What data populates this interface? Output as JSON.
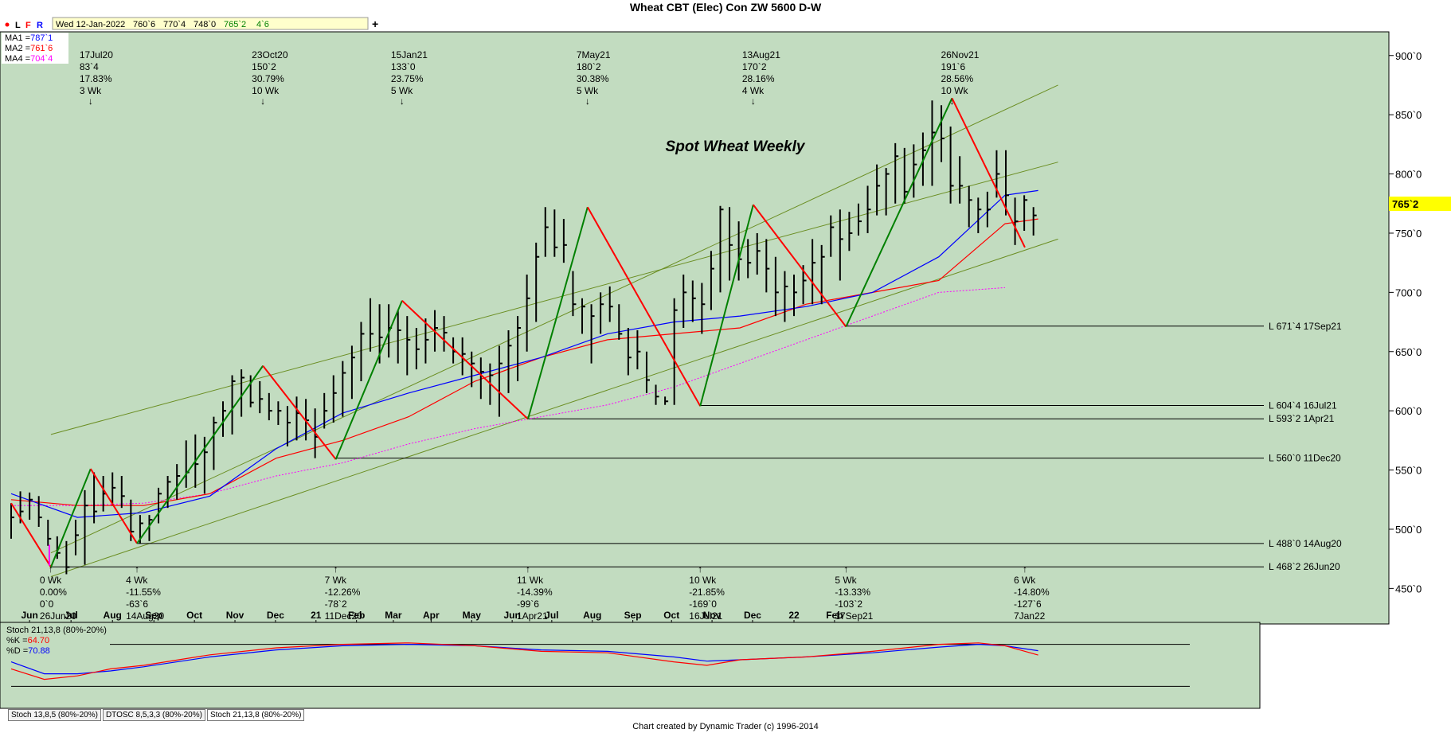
{
  "title": "Wheat CBT (Elec) Con ZW 5600 D-W",
  "footer": "Chart created by Dynamic Trader  (c)  1996-2014",
  "toolbar": {
    "buttons": [
      "L",
      "F",
      "R"
    ],
    "date": "Wed 12-Jan-2022",
    "ohlc": [
      "760`6",
      "770`4",
      "748`0"
    ],
    "last": "765`2",
    "change": "4`6",
    "add": "+"
  },
  "ma_legend": [
    {
      "label": "MA1 =",
      "value": "787`1",
      "color": "#0000ff"
    },
    {
      "label": "MA2 =",
      "value": "761`6",
      "color": "#ff0000"
    },
    {
      "label": "MA4 =",
      "value": "704`4",
      "color": "#ff00ff"
    }
  ],
  "annotation_title": "Spot Wheat Weekly",
  "price_tag": "765`2",
  "tabs": [
    "Stoch 13,8,5 (80%-20%)",
    "DTOSC 8,5,3,3 (80%-20%)",
    "Stoch 21,13,8 (80%-20%)"
  ],
  "stoch": {
    "label": "Stoch 21,13,8 (80%-20%)",
    "k_label": "%K =",
    "k_value": "64.70",
    "d_label": "%D =",
    "d_value": "70.88"
  },
  "colors": {
    "background": "#c2dcc0",
    "up_leg": "#008000",
    "down_leg": "#ff0000",
    "ma1": "#0000ff",
    "ma2": "#ff0000",
    "ma4": "#ff00ff",
    "channel": "#6b8e23",
    "price_tag": "#ffff00"
  },
  "chart_data": {
    "type": "ohlc-bar",
    "y_axis": {
      "min": 420,
      "max": 920,
      "ticks": [
        450,
        500,
        550,
        600,
        650,
        700,
        750,
        800,
        850,
        900
      ],
      "tick_labels": [
        "450`0",
        "500`0",
        "550`0",
        "600`0",
        "650`0",
        "700`0",
        "750`0",
        "800`0",
        "850`0",
        "900`0"
      ]
    },
    "x_axis": {
      "labels": [
        {
          "t": 2.0,
          "label": "Jun"
        },
        {
          "t": 6.5,
          "label": "Jul"
        },
        {
          "t": 11.0,
          "label": "Aug"
        },
        {
          "t": 15.5,
          "label": "Sep"
        },
        {
          "t": 19.9,
          "label": "Oct"
        },
        {
          "t": 24.3,
          "label": "Nov"
        },
        {
          "t": 28.7,
          "label": "Dec"
        },
        {
          "t": 33.1,
          "label": "21"
        },
        {
          "t": 37.5,
          "label": "Feb"
        },
        {
          "t": 41.5,
          "label": "Mar"
        },
        {
          "t": 45.6,
          "label": "Apr"
        },
        {
          "t": 50.0,
          "label": "May"
        },
        {
          "t": 54.4,
          "label": "Jun"
        },
        {
          "t": 58.7,
          "label": "Jul"
        },
        {
          "t": 63.1,
          "label": "Aug"
        },
        {
          "t": 67.5,
          "label": "Sep"
        },
        {
          "t": 71.7,
          "label": "Oct"
        },
        {
          "t": 76.1,
          "label": "Nov"
        },
        {
          "t": 80.5,
          "label": "Dec"
        },
        {
          "t": 85.0,
          "label": "22"
        },
        {
          "t": 89.4,
          "label": "Feb"
        }
      ]
    },
    "bars": [
      [
        0,
        522,
        492,
        510
      ],
      [
        1,
        532,
        505,
        515
      ],
      [
        2,
        531,
        508,
        525
      ],
      [
        3,
        528,
        502,
        510
      ],
      [
        4,
        508,
        486,
        492
      ],
      [
        5,
        494,
        475,
        480
      ],
      [
        6,
        490,
        462,
        468
      ],
      [
        7,
        508,
        478,
        495
      ],
      [
        8,
        533,
        470,
        520
      ],
      [
        9,
        548,
        505,
        515
      ],
      [
        10,
        545,
        515,
        530
      ],
      [
        11,
        548,
        520,
        535
      ],
      [
        12,
        545,
        518,
        528
      ],
      [
        13,
        525,
        490,
        498
      ],
      [
        14,
        512,
        488,
        505
      ],
      [
        15,
        512,
        490,
        508
      ],
      [
        16,
        535,
        505,
        530
      ],
      [
        17,
        545,
        518,
        540
      ],
      [
        18,
        555,
        525,
        545
      ],
      [
        19,
        575,
        535,
        548
      ],
      [
        20,
        580,
        535,
        555
      ],
      [
        21,
        578,
        530,
        565
      ],
      [
        22,
        595,
        550,
        590
      ],
      [
        23,
        608,
        578,
        600
      ],
      [
        24,
        630,
        580,
        625
      ],
      [
        25,
        635,
        595,
        628
      ],
      [
        26,
        630,
        603,
        607
      ],
      [
        27,
        625,
        598,
        610
      ],
      [
        28,
        615,
        592,
        600
      ],
      [
        29,
        608,
        588,
        600
      ],
      [
        30,
        604,
        570,
        590
      ],
      [
        31,
        612,
        575,
        598
      ],
      [
        32,
        610,
        575,
        592
      ],
      [
        33,
        602,
        560,
        578
      ],
      [
        34,
        615,
        585,
        600
      ],
      [
        35,
        630,
        590,
        615
      ],
      [
        36,
        642,
        595,
        632
      ],
      [
        37,
        655,
        610,
        645
      ],
      [
        38,
        675,
        625,
        665
      ],
      [
        39,
        695,
        650,
        665
      ],
      [
        40,
        690,
        640,
        662
      ],
      [
        41,
        690,
        645,
        670
      ],
      [
        42,
        685,
        640,
        668
      ],
      [
        43,
        680,
        630,
        660
      ],
      [
        44,
        670,
        635,
        652
      ],
      [
        45,
        678,
        640,
        660
      ],
      [
        46,
        685,
        650,
        670
      ],
      [
        47,
        680,
        650,
        666
      ],
      [
        48,
        662,
        640,
        650
      ],
      [
        49,
        662,
        630,
        648
      ],
      [
        50,
        650,
        620,
        640
      ],
      [
        51,
        645,
        610,
        633
      ],
      [
        52,
        640,
        605,
        630
      ],
      [
        53,
        655,
        595,
        640
      ],
      [
        54,
        668,
        615,
        655
      ],
      [
        55,
        680,
        625,
        670
      ],
      [
        56,
        715,
        650,
        695
      ],
      [
        57,
        742,
        675,
        730
      ],
      [
        58,
        772,
        730,
        755
      ],
      [
        59,
        770,
        730,
        738
      ],
      [
        60,
        762,
        725,
        740
      ],
      [
        61,
        718,
        680,
        690
      ],
      [
        62,
        695,
        665,
        688
      ],
      [
        63,
        690,
        640,
        680
      ],
      [
        64,
        700,
        665,
        690
      ],
      [
        65,
        705,
        675,
        688
      ],
      [
        66,
        690,
        660,
        665
      ],
      [
        67,
        670,
        630,
        645
      ],
      [
        68,
        668,
        635,
        650
      ],
      [
        69,
        650,
        615,
        626
      ],
      [
        70,
        622,
        605,
        612
      ],
      [
        71,
        612,
        605,
        608
      ],
      [
        72,
        695,
        605,
        685
      ],
      [
        73,
        715,
        670,
        700
      ],
      [
        74,
        710,
        675,
        695
      ],
      [
        75,
        708,
        665,
        690
      ],
      [
        76,
        735,
        685,
        720
      ],
      [
        77,
        773,
        700,
        770
      ],
      [
        78,
        772,
        710,
        740
      ],
      [
        79,
        760,
        710,
        728
      ],
      [
        80,
        745,
        712,
        725
      ],
      [
        81,
        750,
        715,
        735
      ],
      [
        82,
        745,
        700,
        720
      ],
      [
        83,
        730,
        680,
        700
      ],
      [
        84,
        718,
        675,
        705
      ],
      [
        85,
        715,
        680,
        700
      ],
      [
        86,
        723,
        690,
        710
      ],
      [
        87,
        745,
        690,
        725
      ],
      [
        88,
        740,
        690,
        730
      ],
      [
        89,
        765,
        730,
        755
      ],
      [
        90,
        770,
        710,
        745
      ],
      [
        91,
        768,
        735,
        750
      ],
      [
        92,
        775,
        748,
        760
      ],
      [
        93,
        790,
        750,
        770
      ],
      [
        94,
        808,
        765,
        790
      ],
      [
        95,
        805,
        765,
        800
      ],
      [
        96,
        826,
        775,
        815
      ],
      [
        97,
        822,
        775,
        785
      ],
      [
        98,
        825,
        780,
        808
      ],
      [
        99,
        835,
        790,
        820
      ],
      [
        100,
        862,
        790,
        835
      ],
      [
        101,
        858,
        810,
        830
      ],
      [
        102,
        840,
        775,
        790
      ],
      [
        103,
        815,
        775,
        790
      ],
      [
        104,
        790,
        755,
        778
      ],
      [
        105,
        780,
        750,
        770
      ],
      [
        106,
        785,
        755,
        770
      ],
      [
        107,
        820,
        780,
        800
      ],
      [
        108,
        820,
        765,
        782
      ],
      [
        109,
        780,
        740,
        760
      ],
      [
        110,
        782,
        752,
        778
      ],
      [
        111,
        772,
        748,
        765
      ]
    ],
    "swings": [
      [
        0,
        522
      ],
      [
        6,
        468
      ],
      [
        12,
        551
      ],
      [
        19,
        488
      ],
      [
        38,
        638
      ],
      [
        49,
        559
      ],
      [
        59,
        693
      ],
      [
        78,
        593
      ],
      [
        87,
        772
      ],
      [
        104,
        604
      ],
      [
        112,
        774
      ],
      [
        126,
        671
      ],
      [
        142,
        864
      ],
      [
        153,
        738
      ]
    ],
    "ma1": [
      [
        0,
        530
      ],
      [
        10,
        510
      ],
      [
        20,
        514
      ],
      [
        30,
        528
      ],
      [
        40,
        568
      ],
      [
        50,
        598
      ],
      [
        60,
        615
      ],
      [
        70,
        630
      ],
      [
        80,
        645
      ],
      [
        90,
        665
      ],
      [
        100,
        675
      ],
      [
        110,
        680
      ],
      [
        120,
        688
      ],
      [
        130,
        700
      ],
      [
        140,
        730
      ],
      [
        150,
        782
      ],
      [
        155,
        786
      ]
    ],
    "ma2": [
      [
        0,
        525
      ],
      [
        10,
        520
      ],
      [
        20,
        520
      ],
      [
        30,
        530
      ],
      [
        40,
        560
      ],
      [
        50,
        575
      ],
      [
        60,
        595
      ],
      [
        70,
        625
      ],
      [
        80,
        645
      ],
      [
        90,
        660
      ],
      [
        100,
        665
      ],
      [
        110,
        670
      ],
      [
        120,
        690
      ],
      [
        130,
        700
      ],
      [
        140,
        710
      ],
      [
        150,
        758
      ],
      [
        155,
        762
      ]
    ],
    "ma4": [
      [
        0,
        520
      ],
      [
        10,
        520
      ],
      [
        20,
        522
      ],
      [
        30,
        530
      ],
      [
        40,
        545
      ],
      [
        50,
        556
      ],
      [
        60,
        572
      ],
      [
        70,
        585
      ],
      [
        80,
        595
      ],
      [
        90,
        605
      ],
      [
        100,
        620
      ],
      [
        110,
        640
      ],
      [
        120,
        660
      ],
      [
        130,
        680
      ],
      [
        140,
        700
      ],
      [
        150,
        704
      ]
    ],
    "channel": [
      {
        "x1": 6,
        "y1": 460,
        "x2": 158,
        "y2": 745
      },
      {
        "x1": 6,
        "y1": 580,
        "x2": 158,
        "y2": 810
      },
      {
        "x1": 6,
        "y1": 480,
        "x2": 158,
        "y2": 875
      }
    ],
    "support_levels": [
      {
        "price": 671.5,
        "from": 126,
        "label": "L 671`4 17Sep21"
      },
      {
        "price": 604.5,
        "from": 104,
        "label": "L 604`4 16Jul21"
      },
      {
        "price": 593.25,
        "from": 78,
        "label": "L 593`2 1Apr21"
      },
      {
        "price": 560.0,
        "from": 49,
        "label": "L 560`0 11Dec20"
      },
      {
        "price": 488.0,
        "from": 19,
        "label": "L 488`0 14Aug20"
      },
      {
        "price": 468.25,
        "from": 6,
        "label": "L 468`2 26Jun20"
      }
    ],
    "high_labels": [
      {
        "t": 12,
        "lines": [
          "17Jul20",
          "83`4",
          "17.83%",
          "3 Wk"
        ]
      },
      {
        "t": 38,
        "lines": [
          "23Oct20",
          "150`2",
          "30.79%",
          "10 Wk"
        ]
      },
      {
        "t": 59,
        "lines": [
          "15Jan21",
          "133`0",
          "23.75%",
          "5 Wk"
        ]
      },
      {
        "t": 87,
        "lines": [
          "7May21",
          "180`2",
          "30.38%",
          "5 Wk"
        ]
      },
      {
        "t": 112,
        "lines": [
          "13Aug21",
          "170`2",
          "28.16%",
          "4 Wk"
        ]
      },
      {
        "t": 142,
        "lines": [
          "26Nov21",
          "191`6",
          "28.56%",
          "10 Wk"
        ]
      }
    ],
    "low_labels": [
      {
        "t": 6,
        "lines": [
          "0 Wk",
          "0.00%",
          "0`0",
          "26Jun20"
        ]
      },
      {
        "t": 19,
        "lines": [
          "4 Wk",
          "-11.55%",
          "-63`6",
          "14Aug20"
        ]
      },
      {
        "t": 49,
        "lines": [
          "7 Wk",
          "-12.26%",
          "-78`2",
          "11Dec20"
        ]
      },
      {
        "t": 78,
        "lines": [
          "11 Wk",
          "-14.39%",
          "-99`6",
          "1Apr21"
        ]
      },
      {
        "t": 104,
        "lines": [
          "10 Wk",
          "-21.85%",
          "-169`0",
          "16Jul21"
        ]
      },
      {
        "t": 126,
        "lines": [
          "5 Wk",
          "-13.33%",
          "-103`2",
          "17Sep21"
        ]
      },
      {
        "t": 153,
        "lines": [
          "6 Wk",
          "-14.80%",
          "-127`6",
          "7Jan22"
        ]
      }
    ],
    "stoch_k": [
      [
        0,
        45
      ],
      [
        5,
        30
      ],
      [
        10,
        35
      ],
      [
        15,
        45
      ],
      [
        20,
        50
      ],
      [
        30,
        65
      ],
      [
        40,
        75
      ],
      [
        50,
        80
      ],
      [
        60,
        82
      ],
      [
        70,
        78
      ],
      [
        80,
        70
      ],
      [
        90,
        68
      ],
      [
        100,
        55
      ],
      [
        105,
        50
      ],
      [
        110,
        58
      ],
      [
        120,
        62
      ],
      [
        130,
        70
      ],
      [
        140,
        80
      ],
      [
        146,
        82
      ],
      [
        150,
        78
      ],
      [
        155,
        64.7
      ]
    ],
    "stoch_d": [
      [
        0,
        55
      ],
      [
        5,
        38
      ],
      [
        10,
        38
      ],
      [
        15,
        42
      ],
      [
        20,
        48
      ],
      [
        30,
        62
      ],
      [
        40,
        72
      ],
      [
        50,
        78
      ],
      [
        60,
        80
      ],
      [
        70,
        78
      ],
      [
        80,
        72
      ],
      [
        90,
        70
      ],
      [
        100,
        62
      ],
      [
        105,
        56
      ],
      [
        110,
        58
      ],
      [
        120,
        62
      ],
      [
        130,
        68
      ],
      [
        140,
        76
      ],
      [
        146,
        80
      ],
      [
        150,
        78
      ],
      [
        155,
        70.88
      ]
    ]
  }
}
